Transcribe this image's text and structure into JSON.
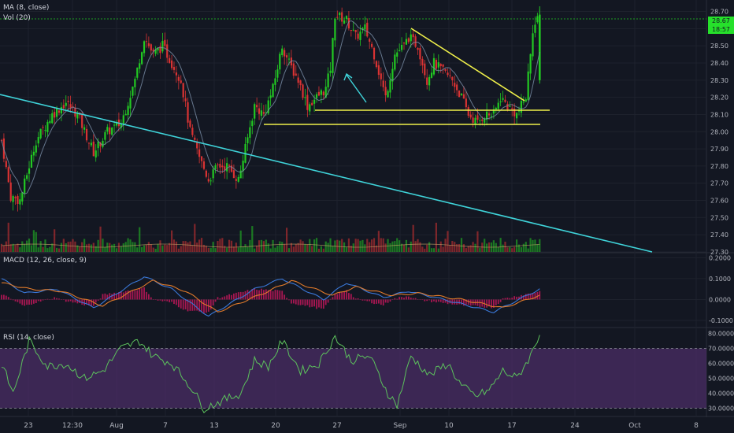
{
  "indicators": {
    "ma_label": "MA (8, close)",
    "vol_label": "Vol (20)",
    "macd_label": "MACD (12, 26, close, 9)",
    "rsi_label": "RSI (14, close)"
  },
  "price_tags": {
    "last_price": "28.67",
    "last_price_bg": "#26e02b",
    "timer": "18:57",
    "timer_bg": "#26e02b"
  },
  "colors": {
    "background": "#131722",
    "bull": "#22c922",
    "bear": "#d93333",
    "trendline_blue": "#3fd3d9",
    "pattern_yellow": "#f0f04a",
    "rsi_band": "#4b2e66",
    "rsi_line": "#5cc15c",
    "macd_line": "#3a78d8",
    "signal_line": "#e07a2a",
    "histogram": "#c2185b",
    "ma_line": "#7b8ea8"
  },
  "chart_data": [
    {
      "type": "candlestick",
      "panel": "price",
      "x_tick_labels": [
        "23",
        "12:30",
        "Aug",
        "7",
        "13",
        "20",
        "27",
        "Sep",
        "10",
        "17",
        "24",
        "Oct",
        "8"
      ],
      "y_tick_labels": [
        "28.70",
        "28.60",
        "28.50",
        "28.40",
        "28.30",
        "28.20",
        "28.10",
        "28.00",
        "27.90",
        "27.80",
        "27.70",
        "27.60",
        "27.50",
        "27.40",
        "27.30"
      ],
      "ylim": [
        27.3,
        28.73
      ],
      "anchors": [
        [
          0,
          27.95
        ],
        [
          4,
          27.62
        ],
        [
          8,
          27.6
        ],
        [
          15,
          27.95
        ],
        [
          22,
          28.1
        ],
        [
          28,
          28.17
        ],
        [
          33,
          28.1
        ],
        [
          40,
          27.88
        ],
        [
          46,
          28.0
        ],
        [
          52,
          28.05
        ],
        [
          58,
          28.3
        ],
        [
          62,
          28.55
        ],
        [
          66,
          28.45
        ],
        [
          70,
          28.5
        ],
        [
          74,
          28.4
        ],
        [
          78,
          28.3
        ],
        [
          82,
          28.0
        ],
        [
          86,
          27.85
        ],
        [
          90,
          27.72
        ],
        [
          94,
          27.8
        ],
        [
          98,
          27.8
        ],
        [
          103,
          27.72
        ],
        [
          106,
          27.9
        ],
        [
          110,
          28.15
        ],
        [
          114,
          28.1
        ],
        [
          118,
          28.25
        ],
        [
          122,
          28.5
        ],
        [
          125,
          28.4
        ],
        [
          129,
          28.3
        ],
        [
          133,
          28.15
        ],
        [
          137,
          28.2
        ],
        [
          141,
          28.25
        ],
        [
          143,
          28.37
        ],
        [
          145,
          28.68
        ],
        [
          150,
          28.65
        ],
        [
          154,
          28.55
        ],
        [
          158,
          28.6
        ],
        [
          162,
          28.45
        ],
        [
          167,
          28.2
        ],
        [
          171,
          28.45
        ],
        [
          175,
          28.5
        ],
        [
          177,
          28.55
        ],
        [
          181,
          28.5
        ],
        [
          185,
          28.3
        ],
        [
          188,
          28.4
        ],
        [
          192,
          28.35
        ],
        [
          196,
          28.3
        ],
        [
          200,
          28.2
        ],
        [
          203,
          28.1
        ],
        [
          207,
          28.05
        ],
        [
          210,
          28.1
        ],
        [
          214,
          28.1
        ],
        [
          217,
          28.2
        ],
        [
          220,
          28.15
        ],
        [
          224,
          28.1
        ],
        [
          228,
          28.2
        ],
        [
          231,
          28.6
        ],
        [
          234,
          28.67
        ]
      ],
      "volume_note": "baseline volume bars under price panel"
    },
    {
      "type": "line",
      "panel": "macd",
      "y_tick_labels": [
        "0.2000",
        "0.1000",
        "0.0000",
        "-0.1000"
      ],
      "ylim": [
        -0.13,
        0.22
      ],
      "series": [
        {
          "values_anchor": [
            [
              0,
              0.1
            ],
            [
              10,
              0.03
            ],
            [
              24,
              0.05
            ],
            [
              40,
              -0.04
            ],
            [
              62,
              0.11
            ],
            [
              74,
              0.05
            ],
            [
              90,
              -0.08
            ],
            [
              110,
              0.05
            ],
            [
              122,
              0.1
            ],
            [
              140,
              0.0
            ],
            [
              150,
              0.08
            ],
            [
              166,
              0.01
            ],
            [
              177,
              0.04
            ],
            [
              196,
              -0.01
            ],
            [
              214,
              -0.06
            ],
            [
              234,
              0.05
            ]
          ]
        },
        {
          "values_anchor": [
            [
              0,
              0.08
            ],
            [
              12,
              0.05
            ],
            [
              26,
              0.04
            ],
            [
              44,
              -0.03
            ],
            [
              66,
              0.09
            ],
            [
              80,
              0.04
            ],
            [
              94,
              -0.06
            ],
            [
              114,
              0.03
            ],
            [
              126,
              0.09
            ],
            [
              144,
              0.02
            ],
            [
              154,
              0.06
            ],
            [
              170,
              0.02
            ],
            [
              181,
              0.03
            ],
            [
              200,
              0.0
            ],
            [
              218,
              -0.04
            ],
            [
              234,
              0.02
            ]
          ]
        }
      ]
    },
    {
      "type": "line",
      "panel": "rsi",
      "y_tick_labels": [
        "80.0000",
        "70.0000",
        "60.0000",
        "50.0000",
        "40.0000",
        "30.0000"
      ],
      "ylim": [
        25,
        83
      ],
      "band": [
        30,
        70
      ],
      "series": [
        {
          "values_anchor": [
            [
              0,
              60
            ],
            [
              5,
              40
            ],
            [
              12,
              75
            ],
            [
              20,
              58
            ],
            [
              28,
              60
            ],
            [
              36,
              50
            ],
            [
              44,
              55
            ],
            [
              52,
              70
            ],
            [
              60,
              75
            ],
            [
              66,
              65
            ],
            [
              74,
              60
            ],
            [
              82,
              45
            ],
            [
              88,
              30
            ],
            [
              96,
              35
            ],
            [
              104,
              40
            ],
            [
              110,
              62
            ],
            [
              116,
              58
            ],
            [
              122,
              75
            ],
            [
              130,
              55
            ],
            [
              138,
              60
            ],
            [
              145,
              78
            ],
            [
              152,
              62
            ],
            [
              160,
              65
            ],
            [
              168,
              40
            ],
            [
              172,
              32
            ],
            [
              178,
              65
            ],
            [
              186,
              52
            ],
            [
              194,
              60
            ],
            [
              200,
              45
            ],
            [
              206,
              38
            ],
            [
              212,
              42
            ],
            [
              218,
              55
            ],
            [
              224,
              50
            ],
            [
              230,
              65
            ],
            [
              234,
              80
            ]
          ]
        }
      ]
    }
  ]
}
